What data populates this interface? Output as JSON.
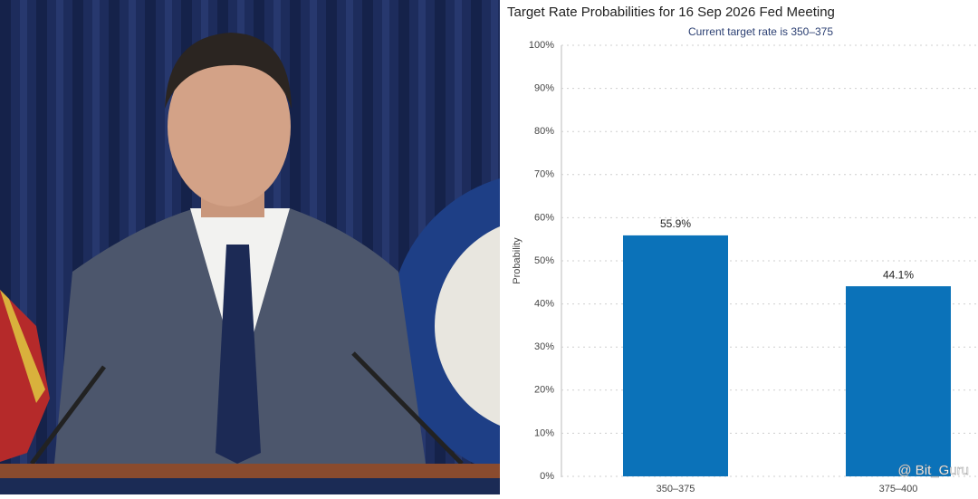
{
  "chart_data": {
    "type": "bar",
    "title": "Target Rate Probabilities for 16 Sep 2026 Fed Meeting",
    "subtitle": "Current target rate is 350–375",
    "y_label": "Probability",
    "categories": [
      "350–375",
      "375–400"
    ],
    "values": [
      55.9,
      44.1
    ],
    "value_labels": [
      "55.9%",
      "44.1%"
    ],
    "color": "#0b72b9",
    "ylim": [
      0,
      100
    ],
    "yticks": [
      {
        "value": 0,
        "label": "0%"
      },
      {
        "value": 10,
        "label": "10%"
      },
      {
        "value": 20,
        "label": "20%"
      },
      {
        "value": 30,
        "label": "30%"
      },
      {
        "value": 40,
        "label": "40%"
      },
      {
        "value": 50,
        "label": "50%"
      },
      {
        "value": 60,
        "label": "60%"
      },
      {
        "value": 70,
        "label": "70%"
      },
      {
        "value": 80,
        "label": "80%"
      },
      {
        "value": 90,
        "label": "90%"
      },
      {
        "value": 100,
        "label": "100%"
      }
    ],
    "grid": true,
    "watermark": "@ Bit_Guru"
  }
}
